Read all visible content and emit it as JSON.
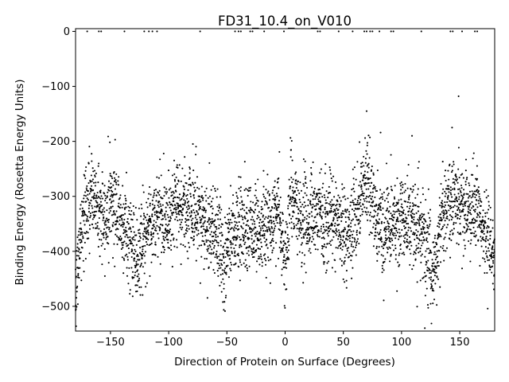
{
  "chart_data": {
    "type": "scatter",
    "title": "FD31_10.4_on_V010",
    "xlabel": "Direction of Protein on Surface (Degrees)",
    "ylabel": "Binding Energy (Rosetta Energy Units)",
    "xlim": [
      -180,
      180
    ],
    "ylim": [
      -545,
      5
    ],
    "x_ticks": [
      -150,
      -100,
      -50,
      0,
      50,
      100,
      150
    ],
    "y_ticks": [
      0,
      -100,
      -200,
      -300,
      -400,
      -500
    ],
    "grid": false,
    "legend": "none",
    "marker_color": "#000000",
    "n_points": 3600,
    "x_step_deg": 0.1,
    "baseline": [
      [
        -180,
        -470
      ],
      [
        -176,
        -380
      ],
      [
        -172,
        -330
      ],
      [
        -168,
        -310
      ],
      [
        -165,
        -300
      ],
      [
        -160,
        -320
      ],
      [
        -155,
        -350
      ],
      [
        -150,
        -300
      ],
      [
        -145,
        -320
      ],
      [
        -140,
        -350
      ],
      [
        -135,
        -370
      ],
      [
        -130,
        -395
      ],
      [
        -126,
        -415
      ],
      [
        -122,
        -380
      ],
      [
        -118,
        -350
      ],
      [
        -110,
        -340
      ],
      [
        -100,
        -330
      ],
      [
        -90,
        -315
      ],
      [
        -80,
        -320
      ],
      [
        -70,
        -350
      ],
      [
        -60,
        -360
      ],
      [
        -55,
        -390
      ],
      [
        -52,
        -445
      ],
      [
        -49,
        -390
      ],
      [
        -45,
        -360
      ],
      [
        -35,
        -350
      ],
      [
        -25,
        -360
      ],
      [
        -15,
        -355
      ],
      [
        -10,
        -335
      ],
      [
        -5,
        -330
      ],
      [
        -2,
        -390
      ],
      [
        0,
        -430
      ],
      [
        3,
        -330
      ],
      [
        5,
        -290
      ],
      [
        8,
        -320
      ],
      [
        15,
        -350
      ],
      [
        25,
        -340
      ],
      [
        35,
        -330
      ],
      [
        45,
        -350
      ],
      [
        52,
        -370
      ],
      [
        58,
        -350
      ],
      [
        63,
        -310
      ],
      [
        67,
        -290
      ],
      [
        70,
        -260
      ],
      [
        73,
        -300
      ],
      [
        78,
        -330
      ],
      [
        85,
        -370
      ],
      [
        92,
        -355
      ],
      [
        100,
        -345
      ],
      [
        108,
        -340
      ],
      [
        115,
        -345
      ],
      [
        121,
        -380
      ],
      [
        124,
        -420
      ],
      [
        126,
        -460
      ],
      [
        129,
        -440
      ],
      [
        132,
        -370
      ],
      [
        137,
        -320
      ],
      [
        143,
        -300
      ],
      [
        150,
        -320
      ],
      [
        158,
        -330
      ],
      [
        165,
        -320
      ],
      [
        170,
        -360
      ],
      [
        175,
        -380
      ],
      [
        180,
        -410
      ]
    ],
    "noise_sd_ree": 40,
    "zero_points_x": [
      -170,
      -160,
      -158,
      -138,
      -121,
      -117,
      -114,
      -110,
      -73,
      -43,
      -40,
      -38,
      -30,
      -28,
      -18,
      -1,
      28,
      30,
      46,
      58,
      68,
      70,
      73,
      75,
      81,
      91,
      93,
      117,
      142,
      144,
      152,
      163,
      165
    ],
    "outliers": [
      {
        "x": 70,
        "y": -145
      },
      {
        "x": 149,
        "y": -118
      },
      {
        "x": 82,
        "y": -184
      },
      {
        "x": -146,
        "y": -197
      },
      {
        "x": 109,
        "y": -190
      }
    ]
  }
}
